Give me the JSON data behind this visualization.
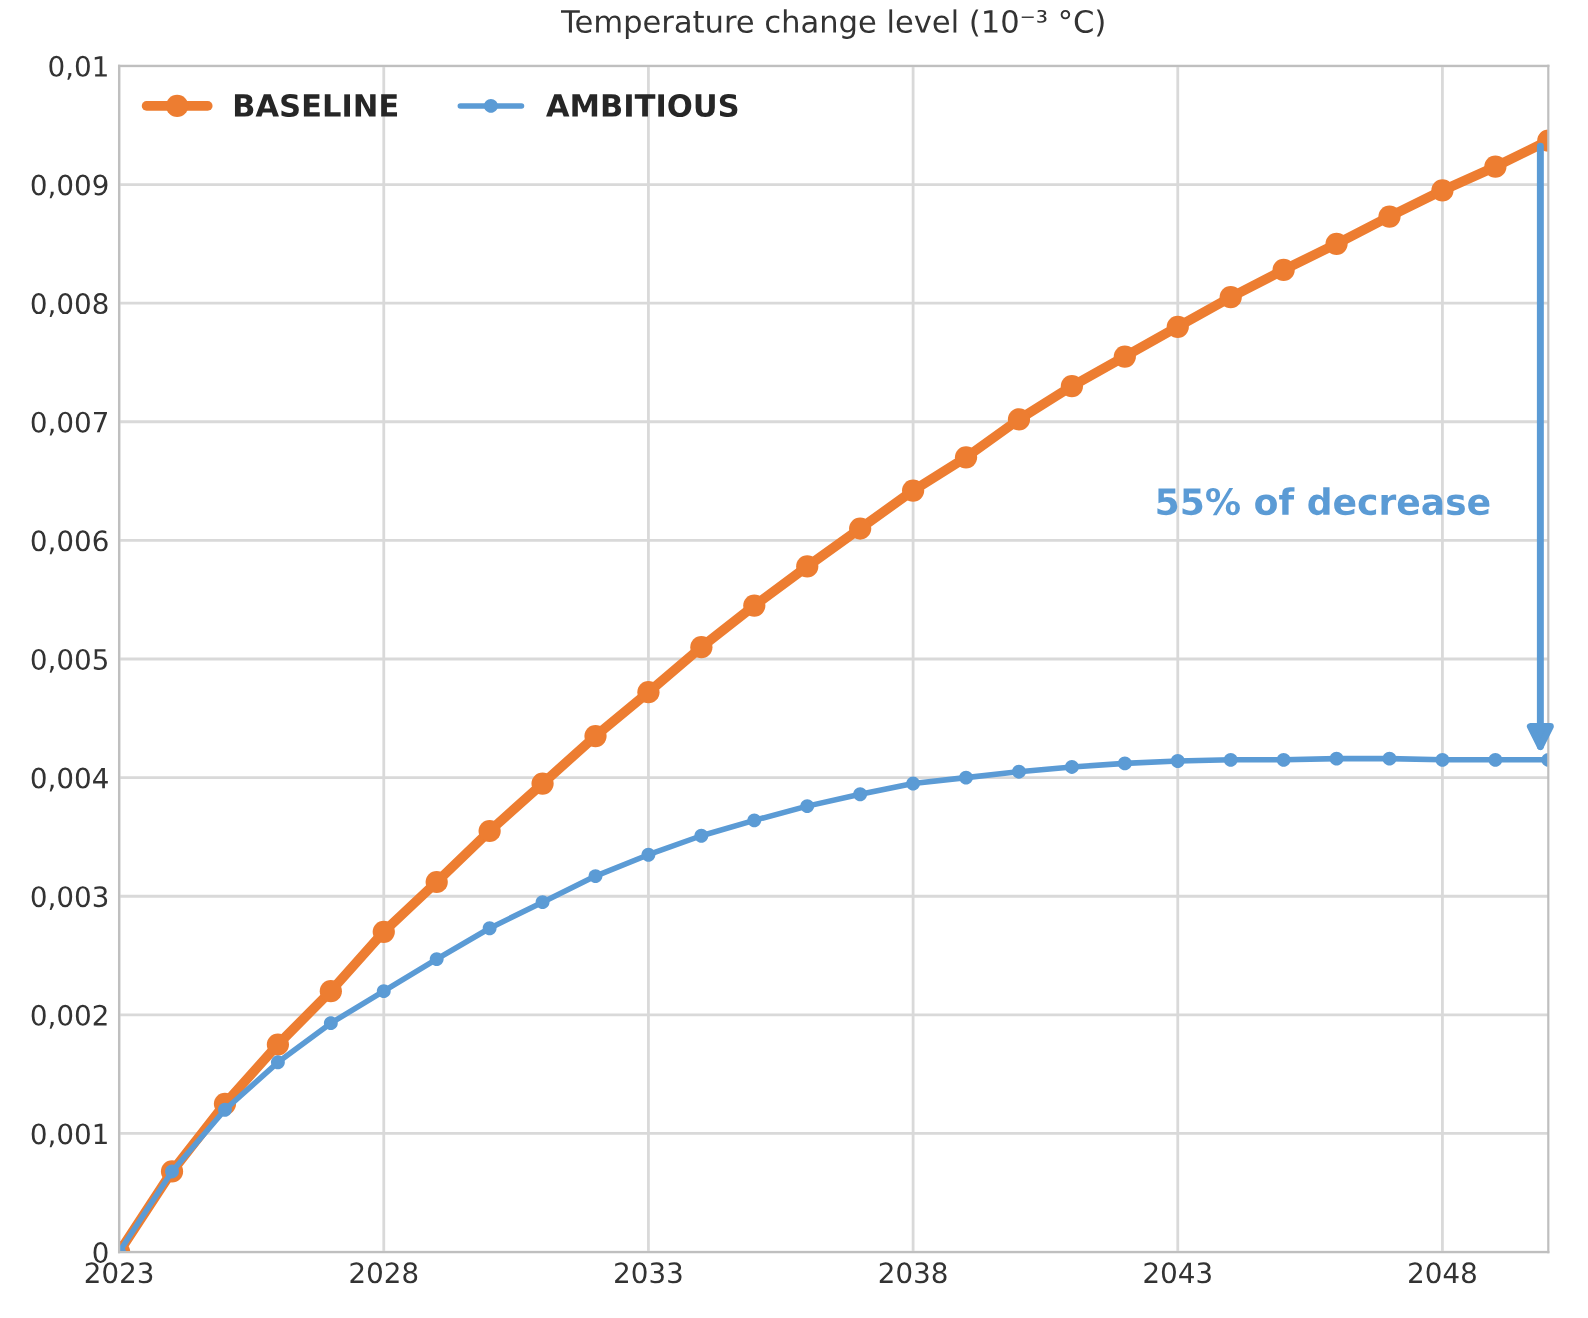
{
  "chart_data": {
    "type": "line",
    "title": "Temperature change level (10⁻³ °C)",
    "x": [
      2023,
      2024,
      2025,
      2026,
      2027,
      2028,
      2029,
      2030,
      2031,
      2032,
      2033,
      2034,
      2035,
      2036,
      2037,
      2038,
      2039,
      2040,
      2041,
      2042,
      2043,
      2044,
      2045,
      2046,
      2047,
      2048,
      2049,
      2050
    ],
    "series": [
      {
        "name": "BASELINE",
        "color": "#ed7d31",
        "values": [
          0,
          0.00068,
          0.00125,
          0.00175,
          0.0022,
          0.0027,
          0.00312,
          0.00355,
          0.00395,
          0.00435,
          0.00472,
          0.0051,
          0.00545,
          0.00578,
          0.0061,
          0.00642,
          0.0067,
          0.00702,
          0.0073,
          0.00755,
          0.0078,
          0.00805,
          0.00828,
          0.0085,
          0.00873,
          0.00895,
          0.00915,
          0.00937
        ]
      },
      {
        "name": "AMBITIOUS",
        "color": "#5b9bd5",
        "values": [
          0,
          0.00068,
          0.0012,
          0.0016,
          0.00193,
          0.0022,
          0.00247,
          0.00273,
          0.00295,
          0.00317,
          0.00335,
          0.00351,
          0.00364,
          0.00376,
          0.00386,
          0.00395,
          0.004,
          0.00405,
          0.00409,
          0.00412,
          0.00414,
          0.00415,
          0.00415,
          0.00416,
          0.00416,
          0.00415,
          0.00415,
          0.00415
        ]
      }
    ],
    "xlim": [
      2023,
      2050
    ],
    "xticks": [
      2023,
      2028,
      2033,
      2038,
      2043,
      2048
    ],
    "ylim": [
      0,
      0.01
    ],
    "yticks": [
      0,
      {
        "value": 0.001,
        "label": "0,001"
      },
      {
        "value": 0.002,
        "label": "0,002"
      },
      {
        "value": 0.003,
        "label": "0,003"
      },
      {
        "value": 0.004,
        "label": "0,004"
      },
      {
        "value": 0.005,
        "label": "0,005"
      },
      {
        "value": 0.006,
        "label": "0,006"
      },
      {
        "value": 0.007,
        "label": "0,007"
      },
      {
        "value": 0.008,
        "label": "0,008"
      },
      {
        "value": 0.009,
        "label": "0,009"
      },
      {
        "value": 0.01,
        "label": "0,01"
      }
    ],
    "annotations": [
      "55% of decrease"
    ],
    "grid": true,
    "legend": "top left",
    "marker": "circle",
    "line_style": "solid"
  }
}
